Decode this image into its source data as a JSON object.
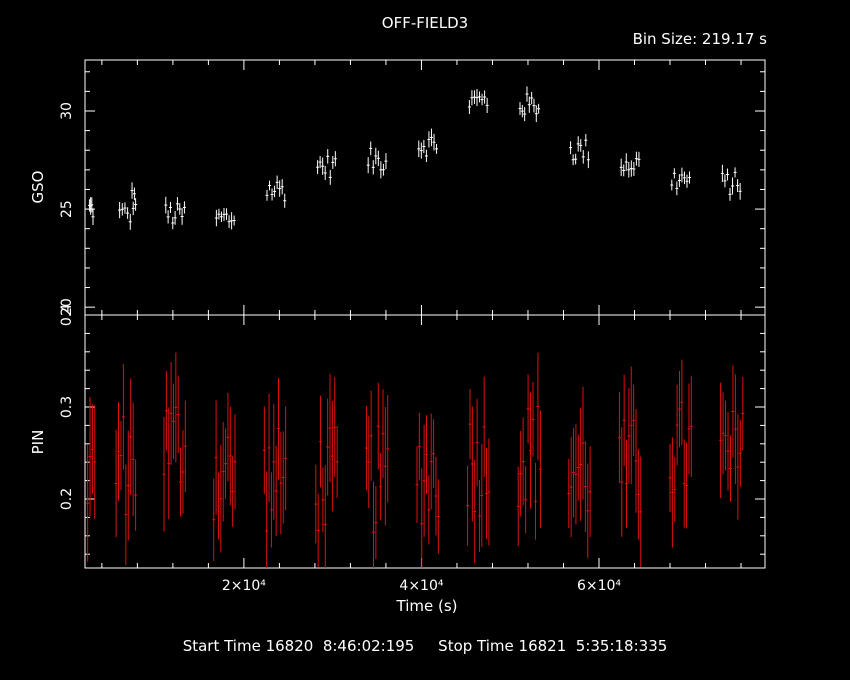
{
  "chart_data": [
    {
      "type": "scatter",
      "title": "OFF-FIELD3",
      "bin_size_label": "Bin Size: 219.17 s",
      "ylabel": "GSO",
      "ylim": [
        19.6,
        32.6
      ],
      "yticks": [
        20,
        25,
        30
      ],
      "ytick_labels": [
        "20",
        "25",
        "30"
      ],
      "xlim": [
        2100,
        78700
      ],
      "color": "#ffffff",
      "segments": [
        {
          "x0": 2600,
          "x1": 3000,
          "y": 25.0
        },
        {
          "x0": 6000,
          "x1": 7200,
          "y": 24.7
        },
        {
          "x0": 7400,
          "x1": 7800,
          "y": 25.5
        },
        {
          "x0": 11200,
          "x1": 13300,
          "y": 24.7
        },
        {
          "x0": 16900,
          "x1": 18900,
          "y": 24.5
        },
        {
          "x0": 22600,
          "x1": 24600,
          "y": 26.0
        },
        {
          "x0": 28300,
          "x1": 30300,
          "y": 27.2
        },
        {
          "x0": 34000,
          "x1": 36000,
          "y": 27.5
        },
        {
          "x0": 39700,
          "x1": 41700,
          "y": 28.3
        },
        {
          "x0": 45400,
          "x1": 47400,
          "y": 30.5
        },
        {
          "x0": 51100,
          "x1": 53200,
          "y": 30.3
        },
        {
          "x0": 56800,
          "x1": 58800,
          "y": 28.0
        },
        {
          "x0": 62500,
          "x1": 64500,
          "y": 27.3
        },
        {
          "x0": 68200,
          "x1": 70200,
          "y": 26.5
        },
        {
          "x0": 73900,
          "x1": 75900,
          "y": 26.3
        }
      ]
    },
    {
      "type": "scatter",
      "ylabel": "PIN",
      "xlabel": "Time (s)",
      "ylim": [
        0.125,
        0.4
      ],
      "yticks": [
        0.2,
        0.3,
        0.4
      ],
      "ytick_labels": [
        "0.2",
        "0.3",
        "0.4"
      ],
      "xlim": [
        2100,
        78700
      ],
      "xticks": [
        20000,
        40000,
        60000
      ],
      "xtick_labels": [
        "2×10⁴",
        "4×10⁴",
        "6×10⁴"
      ],
      "color": "#e01010",
      "segments": [
        {
          "x0": 2400,
          "x1": 3200,
          "y": 0.22
        },
        {
          "x0": 5600,
          "x1": 7800,
          "y": 0.24
        },
        {
          "x0": 11000,
          "x1": 13400,
          "y": 0.26
        },
        {
          "x0": 16600,
          "x1": 19000,
          "y": 0.23
        },
        {
          "x0": 22300,
          "x1": 24700,
          "y": 0.22
        },
        {
          "x0": 28100,
          "x1": 30500,
          "y": 0.22
        },
        {
          "x0": 33800,
          "x1": 36200,
          "y": 0.22
        },
        {
          "x0": 39500,
          "x1": 41900,
          "y": 0.23
        },
        {
          "x0": 45200,
          "x1": 47600,
          "y": 0.24
        },
        {
          "x0": 50900,
          "x1": 53400,
          "y": 0.25
        },
        {
          "x0": 56600,
          "x1": 59000,
          "y": 0.23
        },
        {
          "x0": 62300,
          "x1": 64700,
          "y": 0.23
        },
        {
          "x0": 68000,
          "x1": 70400,
          "y": 0.25
        },
        {
          "x0": 73700,
          "x1": 76200,
          "y": 0.24
        }
      ]
    }
  ],
  "footer": {
    "text": "Start Time 16820  8:46:02:195     Stop Time 16821  5:35:18:335"
  }
}
